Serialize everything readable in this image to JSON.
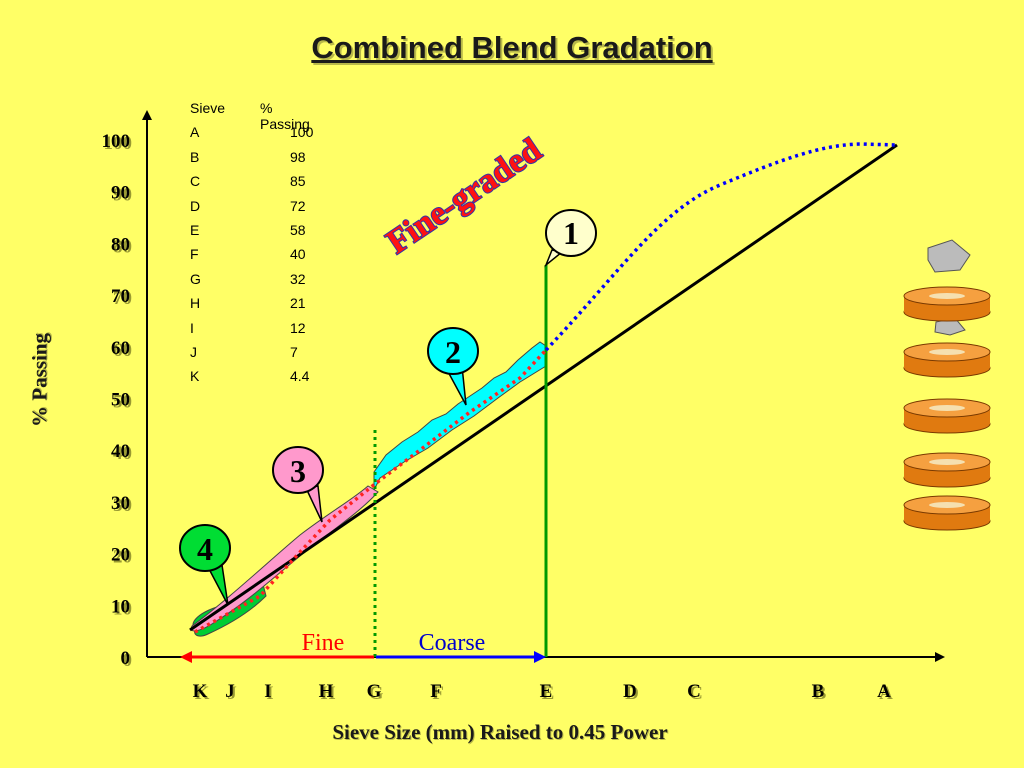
{
  "chart_data": {
    "type": "line",
    "title": "Combined Blend Gradation",
    "xlabel": "Sieve Size (mm) Raised to 0.45 Power",
    "ylabel": "%  Passing",
    "ylim": [
      0,
      100
    ],
    "yticks": [
      0,
      10,
      20,
      30,
      40,
      50,
      60,
      70,
      80,
      90,
      100
    ],
    "sieves": [
      "K",
      "J",
      "I",
      "H",
      "G",
      "F",
      "E",
      "D",
      "C",
      "B",
      "A"
    ],
    "table": {
      "header": [
        "Sieve",
        "% Passing"
      ],
      "rows": [
        [
          "A",
          "100"
        ],
        [
          "B",
          "98"
        ],
        [
          "C",
          "85"
        ],
        [
          "D",
          "72"
        ],
        [
          "E",
          "58"
        ],
        [
          "F",
          "40"
        ],
        [
          "G",
          "32"
        ],
        [
          "H",
          "21"
        ],
        [
          "I",
          "12"
        ],
        [
          "J",
          "7"
        ],
        [
          "K",
          "4.4"
        ]
      ]
    },
    "annotations": {
      "fine_graded": "Fine-graded",
      "fine": "Fine",
      "coarse": "Coarse",
      "callouts": [
        "1",
        "2",
        "3",
        "4"
      ]
    },
    "colors": {
      "background": "#ffff66",
      "max_density_line": "#000000",
      "blend_curve": "#0000ff",
      "blend_curve_fine": "#ff0000",
      "control_point_line": "#009900",
      "band_2": "#00ffff",
      "band_3": "#ff99cc",
      "band_4": "#00cc33",
      "fine_arrow": "#ff0000",
      "coarse_arrow": "#0000ff"
    }
  }
}
